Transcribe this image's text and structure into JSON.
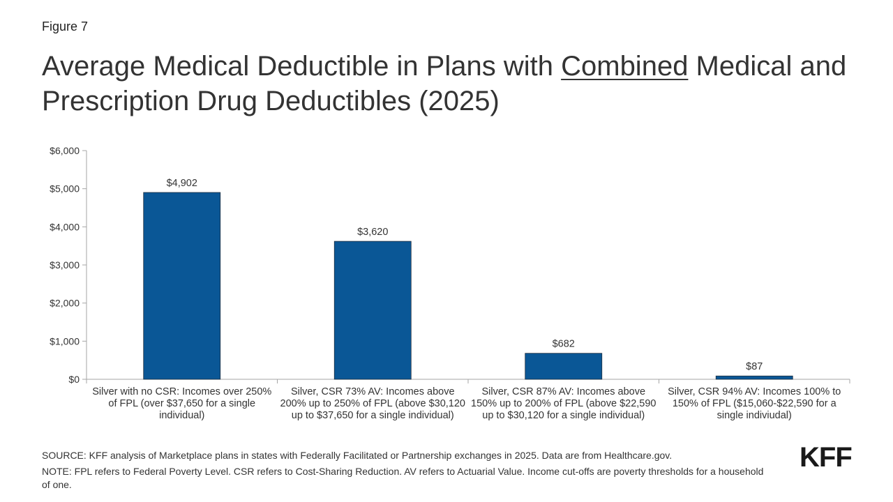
{
  "figure_label": "Figure 7",
  "title": {
    "before": "Average Medical Deductible in Plans with ",
    "underlined": "Combined",
    "after": " Medical and Prescription Drug Deductibles (2025)"
  },
  "chart_data": {
    "type": "bar",
    "categories": [
      "Silver with no CSR: Incomes over 250% of FPL (over $37,650 for a single individual)",
      "Silver, CSR 73% AV: Incomes above 200% up to 250% of FPL (above $30,120 up to $37,650 for a single individual)",
      "Silver, CSR 87% AV: Incomes above 150% up to 200% of FPL (above $22,590 up to $30,120 for a single individual)",
      "Silver, CSR 94% AV: Incomes 100% to 150% of FPL ($15,060-$22,590 for a single indiviudal)"
    ],
    "values": [
      4902,
      3620,
      682,
      87
    ],
    "data_labels": [
      "$4,902",
      "$3,620",
      "$682",
      "$87"
    ],
    "ylim": [
      0,
      6000
    ],
    "yticks": [
      0,
      1000,
      2000,
      3000,
      4000,
      5000,
      6000
    ],
    "ytick_labels": [
      "$0",
      "$1,000",
      "$2,000",
      "$3,000",
      "$4,000",
      "$5,000",
      "$6,000"
    ],
    "bar_color": "#0a5796",
    "grid": false,
    "legend": "none"
  },
  "source": "SOURCE: KFF analysis of Marketplace plans in states with Federally Facilitated or Partnership exchanges in 2025. Data are from Healthcare.gov.",
  "note": "NOTE: FPL refers to Federal Poverty Level. CSR refers to Cost-Sharing Reduction. AV refers to Actuarial Value. Income cut-offs are poverty thresholds for a household of one.",
  "logo": "KFF"
}
